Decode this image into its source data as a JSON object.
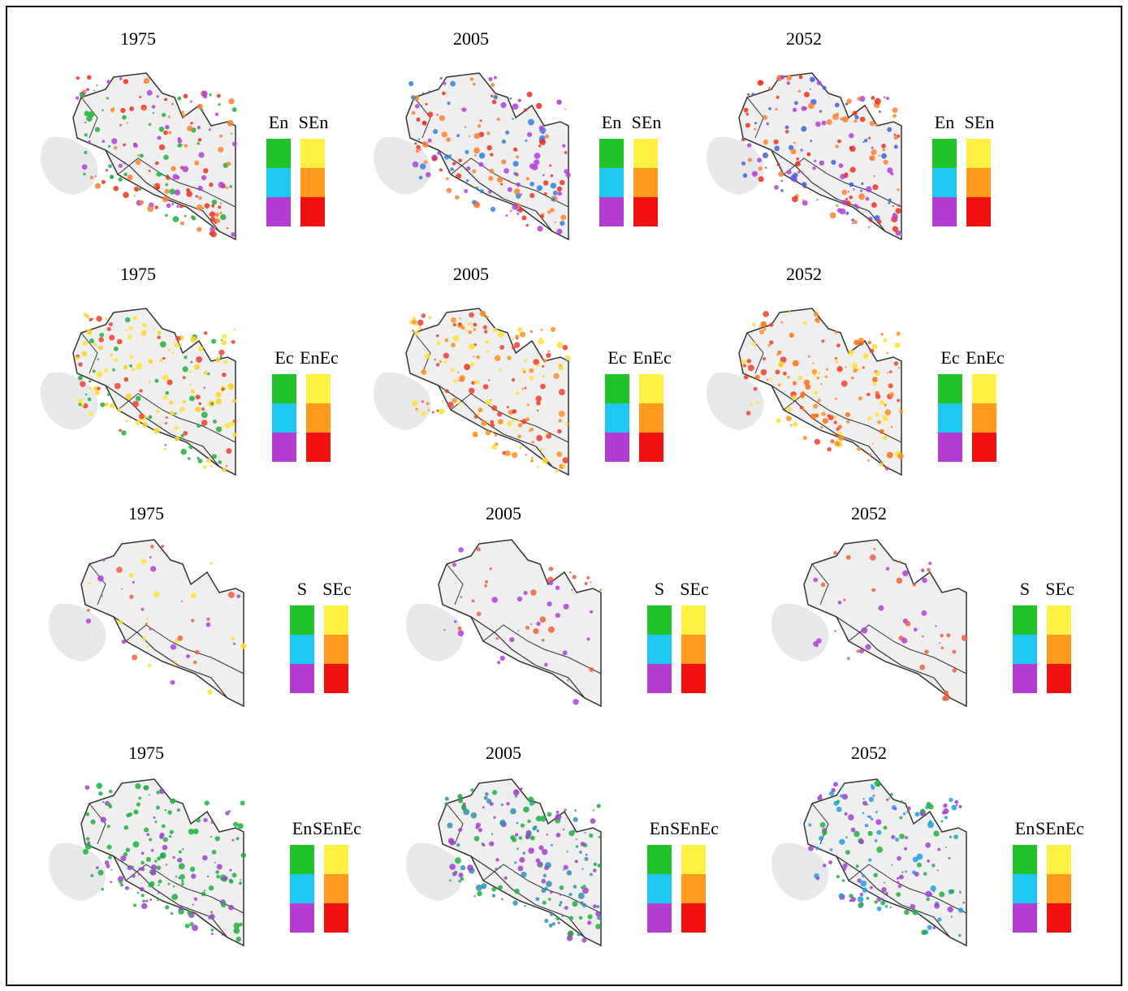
{
  "rows": [
    {
      "panels": [
        {
          "year": "1975",
          "legend": [
            "En",
            "SEn"
          ]
        },
        {
          "year": "2005",
          "legend": [
            "En",
            "SEn"
          ]
        },
        {
          "year": "2052",
          "legend": [
            "En",
            "SEn"
          ]
        }
      ]
    },
    {
      "panels": [
        {
          "year": "1975",
          "legend": [
            "Ec",
            "EnEc"
          ]
        },
        {
          "year": "2005",
          "legend": [
            "Ec",
            "EnEc"
          ]
        },
        {
          "year": "2052",
          "legend": [
            "Ec",
            "EnEc"
          ]
        }
      ]
    },
    {
      "panels": [
        {
          "year": "1975",
          "legend": [
            "S",
            "SEc"
          ]
        },
        {
          "year": "2005",
          "legend": [
            "S",
            "SEc"
          ]
        },
        {
          "year": "2052",
          "legend": [
            "S",
            "SEc"
          ]
        }
      ]
    },
    {
      "panels": [
        {
          "year": "1975",
          "legend": [
            "En",
            "SEnEc"
          ]
        },
        {
          "year": "2005",
          "legend": [
            "En",
            "SEnEc"
          ]
        },
        {
          "year": "2052",
          "legend": [
            "En",
            "SEnEc"
          ]
        }
      ]
    }
  ]
}
